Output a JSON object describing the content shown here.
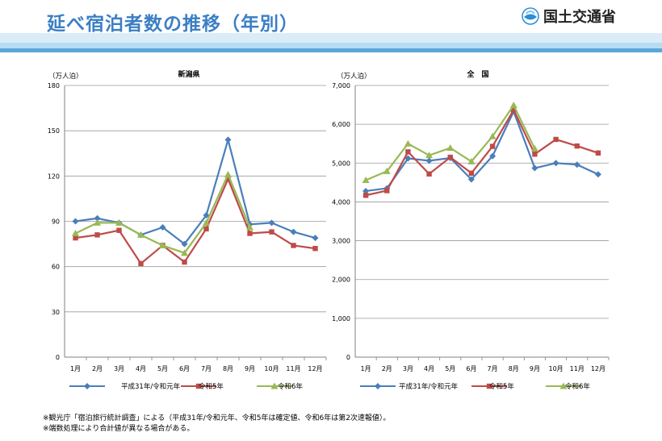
{
  "page": {
    "title": "延べ宿泊者数の推移（年別）",
    "logo_text": "国土交通省",
    "notes": [
      "※観光庁「宿泊旅行統計調査」による（平成31年/令和元年、令和5年は確定値、令和6年は第2次速報値）。",
      "※端数処理により合計値が異なる場合がある。"
    ]
  },
  "colors": {
    "title": "#3b7fc4",
    "series": [
      "#4a7ebb",
      "#be4b48",
      "#98b954"
    ],
    "grid": "#9a9a9a"
  },
  "chart_data": [
    {
      "type": "line",
      "title": "新潟県",
      "ylabel": "（万人泊）",
      "ylim": [
        0,
        180
      ],
      "yticks": [
        "0",
        "30",
        "60",
        "90",
        "120",
        "150",
        "180"
      ],
      "categories": [
        "1月",
        "2月",
        "3月",
        "4月",
        "5月",
        "6月",
        "7月",
        "8月",
        "9月",
        "10月",
        "11月",
        "12月"
      ],
      "grid": true,
      "legend": "bottom",
      "series": [
        {
          "name": "平成31年/令和元年",
          "marker": "diamond",
          "values": [
            90,
            92,
            89,
            81,
            86,
            75,
            94,
            144,
            88,
            89,
            83,
            79
          ]
        },
        {
          "name": "令和5年",
          "marker": "square",
          "values": [
            79,
            81,
            84,
            62,
            74,
            63,
            85,
            118,
            82,
            83,
            74,
            72
          ]
        },
        {
          "name": "令和6年",
          "marker": "triangle",
          "values": [
            82,
            89,
            89,
            81,
            74,
            69,
            89,
            121,
            86,
            null,
            null,
            null
          ]
        }
      ]
    },
    {
      "type": "line",
      "title": "全　国",
      "ylabel": "（万人泊）",
      "ylim": [
        0,
        7000
      ],
      "yticks": [
        "0",
        "1,000",
        "2,000",
        "3,000",
        "4,000",
        "5,000",
        "6,000",
        "7,000"
      ],
      "categories": [
        "1月",
        "2月",
        "3月",
        "4月",
        "5月",
        "6月",
        "7月",
        "8月",
        "9月",
        "10月",
        "11月",
        "12月"
      ],
      "grid": true,
      "legend": "bottom",
      "series": [
        {
          "name": "平成31年/令和元年",
          "marker": "diamond",
          "values": [
            4280,
            4350,
            5120,
            5060,
            5130,
            4580,
            5180,
            6330,
            4870,
            5000,
            4960,
            4710
          ]
        },
        {
          "name": "令和5年",
          "marker": "square",
          "values": [
            4170,
            4290,
            5290,
            4720,
            5150,
            4740,
            5430,
            6370,
            5230,
            5610,
            5440,
            5260
          ]
        },
        {
          "name": "令和6年",
          "marker": "triangle",
          "values": [
            4560,
            4790,
            5500,
            5200,
            5390,
            5040,
            5690,
            6490,
            5370,
            null,
            null,
            null
          ]
        }
      ]
    }
  ]
}
